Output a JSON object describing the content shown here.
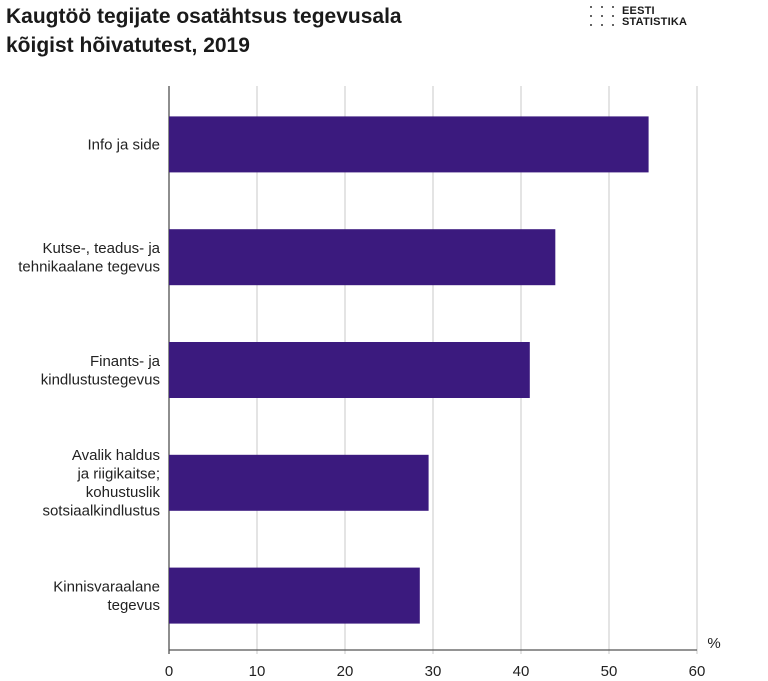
{
  "title_lines": [
    "Kaugtöö tegijate osatähtsus tegevusala",
    "kõigist hõivatutest, 2019"
  ],
  "logo": {
    "line1": "EESTI",
    "line2": "STATISTIKA",
    "icon": "dot-grid-icon"
  },
  "chart_data": {
    "type": "bar",
    "orientation": "horizontal",
    "title": "Kaugtöö tegijate osatähtsus tegevusala kõigist hõivatutest, 2019",
    "categories": [
      [
        "Info ja side"
      ],
      [
        "Kutse-, teadus- ja",
        "tehnikaalane tegevus"
      ],
      [
        "Finants- ja",
        "kindlustustegevus"
      ],
      [
        "Avalik haldus",
        "ja riigikaitse;",
        "kohustuslik",
        "sotsiaalkindlustus"
      ],
      [
        "Kinnisvaraalane",
        "tegevus"
      ]
    ],
    "values": [
      54.5,
      43.9,
      41.0,
      29.5,
      28.5
    ],
    "xlim": [
      0,
      60
    ],
    "xticks": [
      0,
      10,
      20,
      30,
      40,
      50,
      60
    ],
    "unit": "%",
    "bar_color": "#3b1a7e",
    "grid": true
  }
}
